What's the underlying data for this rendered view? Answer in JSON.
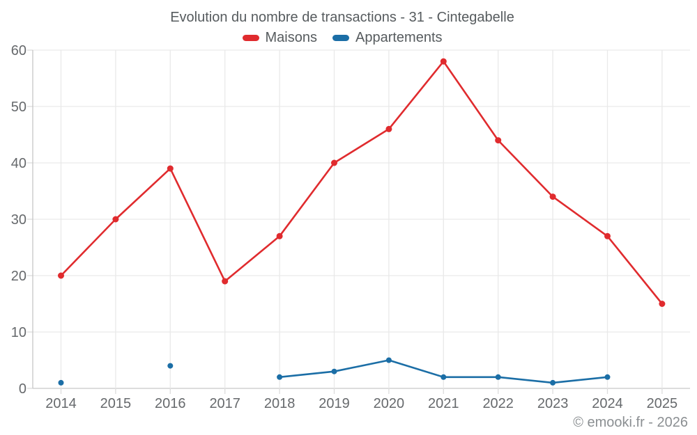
{
  "chart": {
    "title": "Evolution du nombre de transactions - 31 - Cintegabelle",
    "footer": "© emooki.fr - 2026"
  },
  "chart_data": {
    "type": "line",
    "title": "Evolution du nombre de transactions - 31 - Cintegabelle",
    "categories": [
      "2014",
      "2015",
      "2016",
      "2017",
      "2018",
      "2019",
      "2020",
      "2021",
      "2022",
      "2023",
      "2024",
      "2025"
    ],
    "series": [
      {
        "name": "Maisons",
        "color": "#e02b2e",
        "point_radius": 4.5,
        "values": [
          20,
          30,
          39,
          19,
          27,
          40,
          46,
          58,
          44,
          34,
          27,
          15
        ]
      },
      {
        "name": "Appartements",
        "color": "#1b6ea6",
        "point_radius": 4,
        "values": [
          1,
          null,
          4,
          null,
          2,
          3,
          5,
          2,
          2,
          1,
          2,
          null
        ]
      }
    ],
    "xlabel": "",
    "ylabel": "",
    "ylim": [
      0,
      60
    ],
    "ytick_step": 10,
    "grid": true,
    "legend_position": "top",
    "span_gaps": false,
    "colors": {
      "gridline": "#e9e9e9",
      "axis_line": "#c6c6c6",
      "tick_mark": "#dcdcdc",
      "tick_label": "#66696c",
      "title_text": "#565b5e",
      "footer_text": "#8b8f92"
    }
  }
}
